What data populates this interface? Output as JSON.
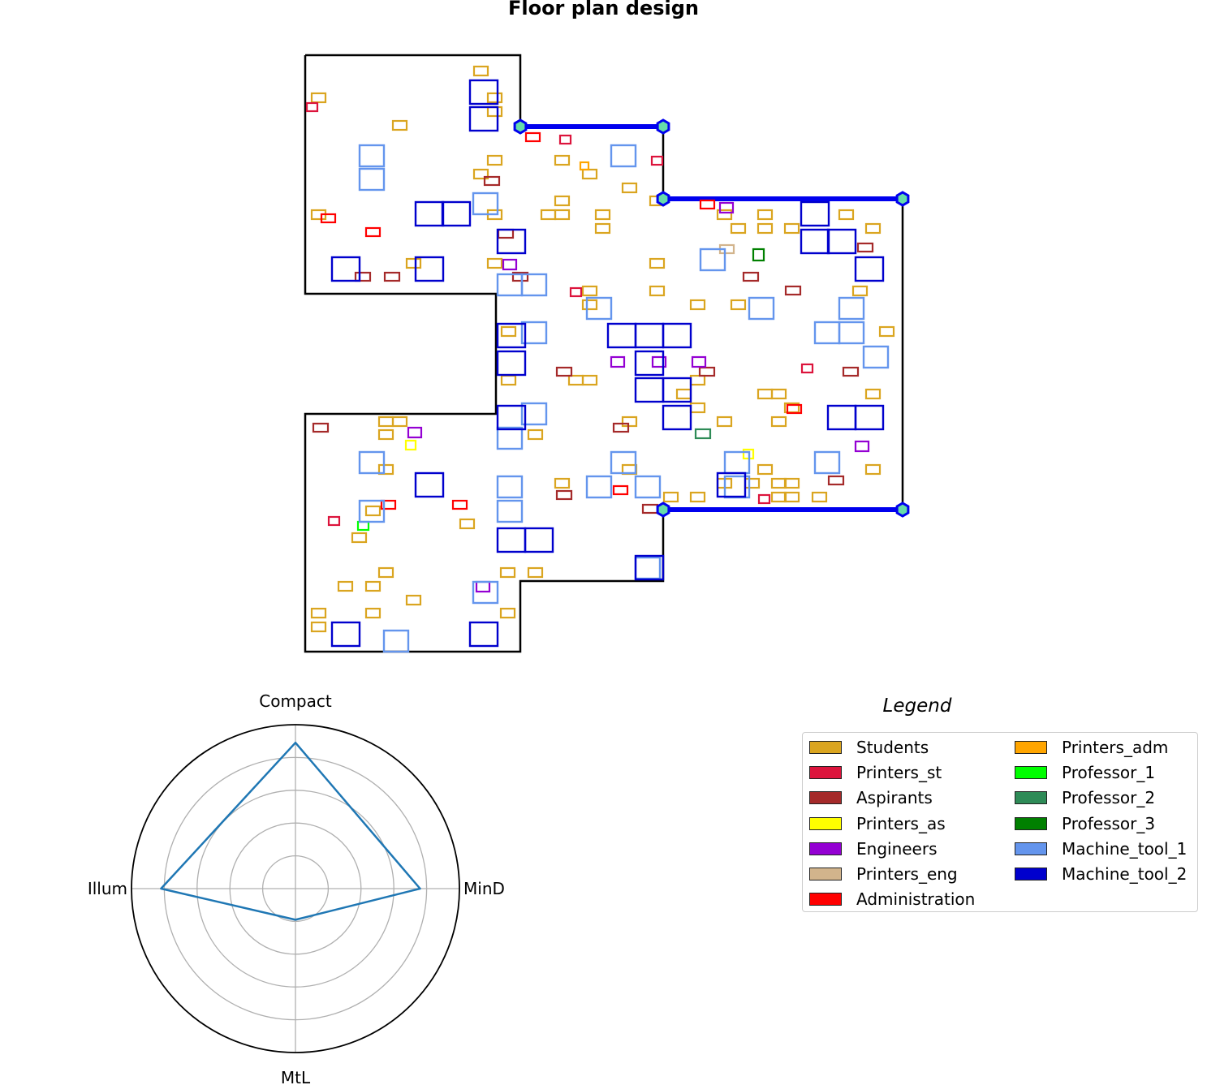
{
  "title": "Floor plan design",
  "legend": {
    "title": "Legend",
    "items": [
      {
        "label": "Students",
        "color": "#DAA520"
      },
      {
        "label": "Printers_st",
        "color": "#DC143C"
      },
      {
        "label": "Aspirants",
        "color": "#A52A2A"
      },
      {
        "label": "Printers_as",
        "color": "#FFFF00"
      },
      {
        "label": "Engineers",
        "color": "#9400D3"
      },
      {
        "label": "Printers_eng",
        "color": "#D2B48C"
      },
      {
        "label": "Administration",
        "color": "#FF0000"
      },
      {
        "label": "Printers_adm",
        "color": "#FFA500"
      },
      {
        "label": "Professor_1",
        "color": "#00FF00"
      },
      {
        "label": "Professor_2",
        "color": "#2E8B57"
      },
      {
        "label": "Professor_3",
        "color": "#008000"
      },
      {
        "label": "Machine_tool_1",
        "color": "#6495ED"
      },
      {
        "label": "Machine_tool_2",
        "color": "#0000CD"
      }
    ]
  },
  "radar": {
    "axes": [
      "Compact",
      "MinD",
      "MtL",
      "Illum"
    ],
    "values": [
      0.89,
      0.76,
      0.19,
      0.82
    ],
    "max": 1.0,
    "grid_levels": [
      0.2,
      0.4,
      0.6,
      0.8,
      1.0
    ],
    "line_color": "#1F77B4"
  },
  "colors": {
    "outline": "#000000",
    "wall_line": "#0000EE",
    "door_marker_fill": "#66DDAA"
  }
}
